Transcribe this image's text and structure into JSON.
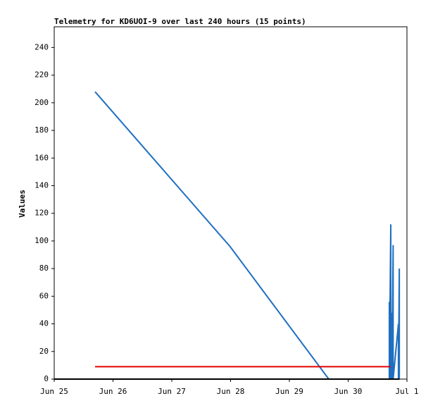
{
  "chart_data": {
    "type": "line",
    "title": "Telemetry for KD6UOI-9 over last 240 hours (15 points)",
    "y_label": "Values",
    "xlim": [
      0,
      6
    ],
    "xticks": [
      {
        "value": 0,
        "label": "Jun 25"
      },
      {
        "value": 1,
        "label": "Jun 26"
      },
      {
        "value": 2,
        "label": "Jun 27"
      },
      {
        "value": 3,
        "label": "Jun 28"
      },
      {
        "value": 4,
        "label": "Jun 29"
      },
      {
        "value": 5,
        "label": "Jun 30"
      },
      {
        "value": 6,
        "label": "Jul 1"
      }
    ],
    "ylim": [
      0,
      255
    ],
    "yticks": [
      0,
      20,
      40,
      60,
      80,
      100,
      120,
      140,
      160,
      180,
      200,
      220,
      240
    ],
    "series": [
      {
        "color": "#1f6fc0",
        "x": [
          0.695,
          2.99,
          4.67,
          5.7,
          5.7,
          5.7,
          5.725,
          5.725,
          5.745,
          5.745,
          5.765,
          5.765,
          5.855,
          5.855,
          5.87,
          5.87
        ],
        "values": [
          208,
          96,
          0,
          0,
          56,
          0,
          112,
          0,
          48,
          0,
          97,
          0,
          40,
          0,
          80,
          0
        ]
      },
      {
        "color": "#e00000",
        "x": [
          0.695,
          5.72
        ],
        "values": [
          9,
          9
        ]
      },
      {
        "color": "#000000",
        "x": [
          0,
          5.87
        ],
        "values": [
          0,
          0
        ]
      }
    ]
  }
}
